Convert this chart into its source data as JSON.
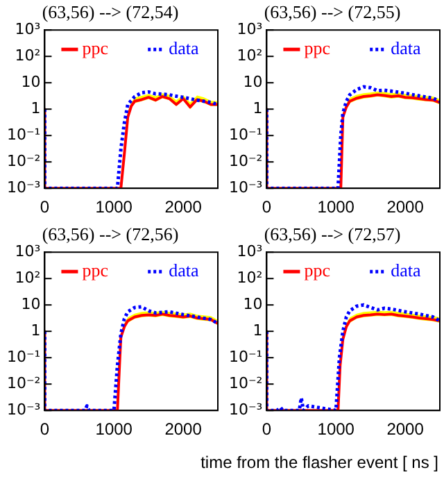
{
  "chart_data": [
    {
      "type": "line",
      "title": "(63,56) --> (72,54)",
      "xlim": [
        0,
        2500
      ],
      "xticks": [
        0,
        1000,
        2000
      ],
      "ylim": [
        0.001,
        1000
      ],
      "log": "y",
      "legend": "top",
      "grid": false,
      "marker": "none",
      "yticks": [
        {
          "value": 0.001,
          "label": "10⁻³"
        },
        {
          "value": 0.01,
          "label": "10⁻²"
        },
        {
          "value": 0.1,
          "label": "10⁻¹"
        },
        {
          "value": 1,
          "label": "1"
        },
        {
          "value": 10,
          "label": "10"
        },
        {
          "value": 100,
          "label": "10²"
        },
        {
          "value": 1000,
          "label": "10³"
        }
      ],
      "series": [
        {
          "name": "ppc",
          "color": "#ff0000",
          "line_style": "solid",
          "x": [
            0,
            0,
            1100,
            1150,
            1200,
            1250,
            1300,
            1400,
            1500,
            1600,
            1700,
            1800,
            1900,
            2000,
            2100,
            2200,
            2300,
            2400,
            2500
          ],
          "values": [
            1,
            0.001,
            0.001,
            0.02,
            0.5,
            1.3,
            2,
            2.3,
            2.8,
            2.2,
            3,
            2.5,
            1.5,
            2.5,
            1.2,
            2.3,
            2,
            1.5,
            1.5
          ],
          "lower": [
            null,
            null,
            null,
            null,
            0.4,
            1.1,
            1.7,
            2,
            2.4,
            1.9,
            2.6,
            2.2,
            1.3,
            2.2,
            1,
            2,
            1.7,
            1.3,
            1.3
          ],
          "upper": [
            null,
            null,
            null,
            null,
            0.8,
            1.8,
            2.8,
            3.2,
            3.8,
            3.1,
            4,
            3.5,
            2.2,
            3.4,
            1.8,
            3.3,
            2.8,
            2.1,
            2
          ]
        },
        {
          "name": "data",
          "color": "#0000ff",
          "line_style": "dotted",
          "x": [
            0,
            0,
            1050,
            1100,
            1150,
            1200,
            1300,
            1400,
            1500,
            1600,
            1700,
            1800,
            1900,
            2000,
            2200,
            2400,
            2500
          ],
          "values": [
            1,
            0.001,
            0.001,
            0.03,
            0.3,
            1.5,
            3,
            4.2,
            4.5,
            3.8,
            3.7,
            3.5,
            3.1,
            2.8,
            2.2,
            1.8,
            1.5
          ]
        }
      ]
    },
    {
      "type": "line",
      "title": "(63,56) --> (72,55)",
      "xlim": [
        0,
        2500
      ],
      "xticks": [
        0,
        1000,
        2000
      ],
      "ylim": [
        0.001,
        1000
      ],
      "log": "y",
      "legend": "top",
      "grid": false,
      "marker": "none",
      "yticks": [
        {
          "value": 0.001,
          "label": "10⁻³"
        },
        {
          "value": 0.01,
          "label": "10⁻²"
        },
        {
          "value": 0.1,
          "label": "10⁻¹"
        },
        {
          "value": 1,
          "label": "1"
        },
        {
          "value": 10,
          "label": "10"
        },
        {
          "value": 100,
          "label": "10²"
        },
        {
          "value": 1000,
          "label": "10³"
        }
      ],
      "series": [
        {
          "name": "ppc",
          "color": "#ff0000",
          "line_style": "solid",
          "x": [
            0,
            0,
            1070,
            1100,
            1150,
            1200,
            1300,
            1400,
            1500,
            1600,
            1700,
            1800,
            1900,
            2000,
            2100,
            2200,
            2300,
            2400,
            2500
          ],
          "values": [
            1,
            0.001,
            0.001,
            0.5,
            1.2,
            2,
            2.6,
            3,
            3.2,
            3.5,
            3.3,
            3,
            3.2,
            2.8,
            2.7,
            2.5,
            2.3,
            2.2,
            1.8
          ],
          "lower": [
            null,
            null,
            null,
            0.4,
            1,
            1.7,
            2.2,
            2.5,
            2.7,
            3,
            2.8,
            2.5,
            2.7,
            2.4,
            2.3,
            2.1,
            2,
            1.9,
            1.5
          ],
          "upper": [
            null,
            null,
            null,
            0.7,
            1.6,
            2.7,
            3.5,
            4,
            4.3,
            4.7,
            4.5,
            4,
            4.3,
            3.8,
            3.6,
            3.4,
            3.1,
            3,
            2.4
          ]
        },
        {
          "name": "data",
          "color": "#0000ff",
          "line_style": "dotted",
          "x": [
            0,
            0,
            1030,
            1070,
            1100,
            1150,
            1200,
            1300,
            1400,
            1500,
            1600,
            1700,
            1800,
            2000,
            2200,
            2400,
            2500
          ],
          "values": [
            1,
            0.001,
            0.001,
            0.1,
            0.7,
            2,
            3.5,
            5.5,
            7,
            6.5,
            5,
            5.2,
            4.8,
            4,
            3.2,
            2.6,
            2
          ]
        }
      ]
    },
    {
      "type": "line",
      "title": "(63,56) --> (72,56)",
      "xlim": [
        0,
        2500
      ],
      "xticks": [
        0,
        1000,
        2000
      ],
      "ylim": [
        0.001,
        1000
      ],
      "log": "y",
      "legend": "top",
      "grid": false,
      "marker": "none",
      "yticks": [
        {
          "value": 0.001,
          "label": "10⁻³"
        },
        {
          "value": 0.01,
          "label": "10⁻²"
        },
        {
          "value": 0.1,
          "label": "10⁻¹"
        },
        {
          "value": 1,
          "label": "1"
        },
        {
          "value": 10,
          "label": "10"
        },
        {
          "value": 100,
          "label": "10²"
        },
        {
          "value": 1000,
          "label": "10³"
        }
      ],
      "series": [
        {
          "name": "ppc",
          "color": "#ff0000",
          "line_style": "solid",
          "x": [
            0,
            0,
            1050,
            1080,
            1100,
            1150,
            1200,
            1300,
            1400,
            1500,
            1600,
            1700,
            1800,
            1900,
            2000,
            2100,
            2200,
            2300,
            2400,
            2500
          ],
          "values": [
            1,
            0.001,
            0.001,
            0.05,
            0.6,
            1.5,
            2.5,
            3.5,
            4,
            4.2,
            4,
            4.5,
            4,
            3.8,
            3.5,
            3.8,
            3.2,
            3,
            2.8,
            2
          ],
          "lower": [
            null,
            null,
            null,
            null,
            0.5,
            1.3,
            2.1,
            3,
            3.4,
            3.6,
            3.4,
            3.8,
            3.4,
            3.2,
            3,
            3.2,
            2.7,
            2.5,
            2.4,
            1.7
          ],
          "upper": [
            null,
            null,
            null,
            null,
            0.8,
            2,
            3.4,
            4.7,
            5.4,
            5.7,
            5.4,
            6,
            5.4,
            5.1,
            4.7,
            5.1,
            4.3,
            4,
            3.8,
            2.7
          ]
        },
        {
          "name": "data",
          "color": "#0000ff",
          "line_style": "dotted",
          "x": [
            0,
            0,
            580,
            610,
            640,
            1000,
            1050,
            1100,
            1150,
            1200,
            1300,
            1400,
            1500,
            1600,
            1800,
            2000,
            2200,
            2400,
            2500
          ],
          "values": [
            1,
            0.001,
            0.001,
            0.0015,
            0.001,
            0.001,
            0.05,
            0.8,
            3,
            5.5,
            8,
            8.5,
            6,
            5,
            5.5,
            4.3,
            3.5,
            2.8,
            2
          ]
        }
      ]
    },
    {
      "type": "line",
      "title": "(63,56) --> (72,57)",
      "xlabel": "time from the flasher event [ ns ]",
      "xlim": [
        0,
        2500
      ],
      "xticks": [
        0,
        1000,
        2000
      ],
      "ylim": [
        0.001,
        1000
      ],
      "log": "y",
      "legend": "top",
      "grid": false,
      "marker": "none",
      "yticks": [
        {
          "value": 0.001,
          "label": "10⁻³"
        },
        {
          "value": 0.01,
          "label": "10⁻²"
        },
        {
          "value": 0.1,
          "label": "10⁻¹"
        },
        {
          "value": 1,
          "label": "1"
        },
        {
          "value": 10,
          "label": "10"
        },
        {
          "value": 100,
          "label": "10²"
        },
        {
          "value": 1000,
          "label": "10³"
        }
      ],
      "series": [
        {
          "name": "ppc",
          "color": "#ff0000",
          "line_style": "solid",
          "x": [
            0,
            0,
            1030,
            1060,
            1100,
            1150,
            1200,
            1300,
            1400,
            1500,
            1600,
            1700,
            1800,
            1900,
            2000,
            2100,
            2200,
            2300,
            2400,
            2500
          ],
          "values": [
            1,
            0.001,
            0.001,
            0.05,
            0.5,
            1.5,
            2.5,
            3.5,
            4,
            4.2,
            4.5,
            4.3,
            4.5,
            4,
            3.8,
            3.5,
            3.2,
            3,
            2.8,
            2.5
          ],
          "lower": [
            null,
            null,
            null,
            null,
            0.4,
            1.3,
            2.1,
            3,
            3.4,
            3.6,
            3.8,
            3.7,
            3.8,
            3.4,
            3.2,
            3,
            2.7,
            2.5,
            2.4,
            2.1
          ],
          "upper": [
            null,
            null,
            null,
            null,
            0.7,
            2,
            3.4,
            4.7,
            5.4,
            5.7,
            6,
            5.8,
            6,
            5.4,
            5.1,
            4.7,
            4.3,
            4,
            3.8,
            3.4
          ]
        },
        {
          "name": "data",
          "color": "#0000ff",
          "line_style": "dotted",
          "x": [
            0,
            0,
            150,
            200,
            230,
            470,
            500,
            530,
            600,
            1000,
            1050,
            1100,
            1150,
            1200,
            1300,
            1400,
            1500,
            1600,
            1700,
            1800,
            2000,
            2200,
            2400,
            2500
          ],
          "values": [
            1,
            0.001,
            0.001,
            0.0013,
            0.001,
            0.001,
            0.003,
            0.001,
            0.0015,
            0.001,
            0.1,
            1,
            3.5,
            6,
            9,
            10,
            8,
            6.5,
            7.5,
            7,
            5.5,
            4.5,
            3.5,
            2.5
          ]
        }
      ]
    }
  ]
}
